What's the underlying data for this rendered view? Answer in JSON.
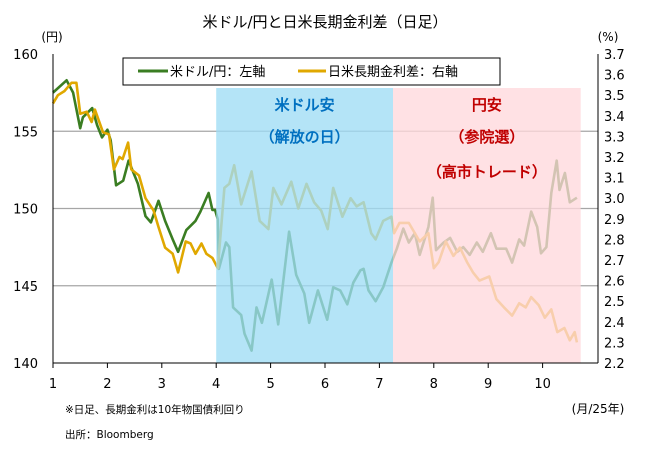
{
  "chart_data": {
    "type": "line",
    "title": "米ドル/円と日米長期金利差（日足）",
    "ylabel_left": "(円)",
    "ylabel_right": "(%)",
    "xlabel": "(月/25年)",
    "ylim_left": [
      140,
      160
    ],
    "ylim_right": [
      2.2,
      3.7
    ],
    "xlim": [
      1,
      10.9
    ],
    "grid": true,
    "legend_placement": "top",
    "left_ticks": [
      "160",
      "155",
      "150",
      "145",
      "140"
    ],
    "right_ticks": [
      "3.7",
      "3.6",
      "3.5",
      "3.4",
      "3.3",
      "3.2",
      "3.1",
      "3.0",
      "2.9",
      "2.8",
      "2.7",
      "2.6",
      "2.5",
      "2.4",
      "2.3",
      "2.2"
    ],
    "x_ticks": [
      "1",
      "2",
      "3",
      "4",
      "5",
      "6",
      "7",
      "8",
      "9",
      "10"
    ],
    "series": [
      {
        "name": "米ドル/円：左軸",
        "axis": "left",
        "color": "#3a7d22",
        "x": [
          1.0,
          1.25,
          1.37,
          1.5,
          1.55,
          1.72,
          1.81,
          1.9,
          2.0,
          2.06,
          2.16,
          2.29,
          2.39,
          2.56,
          2.7,
          2.8,
          2.94,
          3.06,
          3.2,
          3.3,
          3.45,
          3.62,
          3.71,
          3.86,
          3.93,
          3.98,
          4.03,
          4.05,
          4.18,
          4.24,
          4.31,
          4.46,
          4.52,
          4.65,
          4.74,
          4.84,
          5.02,
          5.14,
          5.34,
          5.47,
          5.62,
          5.71,
          5.87,
          6.04,
          6.15,
          6.28,
          6.41,
          6.52,
          6.65,
          6.71,
          6.8,
          6.93,
          7.07,
          7.22,
          7.32,
          7.44,
          7.54,
          7.65,
          7.74,
          7.9,
          7.98,
          8.04,
          8.18,
          8.3,
          8.43,
          8.54,
          8.66,
          8.79,
          8.9,
          9.05,
          9.15,
          9.33,
          9.44,
          9.57,
          9.66,
          9.79,
          9.9,
          9.97,
          10.07,
          10.16,
          10.26,
          10.31,
          10.41,
          10.5,
          10.63
        ],
        "values": [
          157.5,
          158.3,
          157.5,
          155.2,
          155.9,
          156.5,
          155.4,
          154.6,
          155.1,
          154.4,
          151.5,
          151.8,
          153.1,
          151.6,
          149.5,
          149.1,
          150.5,
          149.2,
          148.0,
          147.2,
          148.6,
          149.2,
          149.8,
          151.0,
          149.9,
          149.9,
          149.3,
          146.1,
          147.8,
          147.5,
          143.6,
          143.1,
          141.9,
          140.8,
          143.6,
          142.6,
          145.4,
          142.5,
          148.5,
          145.7,
          144.5,
          142.6,
          144.7,
          142.8,
          144.9,
          144.7,
          143.8,
          145.2,
          146.0,
          146.1,
          144.7,
          144.0,
          144.9,
          146.5,
          147.4,
          148.7,
          147.8,
          148.4,
          147.0,
          148.8,
          150.7,
          147.3,
          147.8,
          148.1,
          147.2,
          147.5,
          147.0,
          147.8,
          147.2,
          148.4,
          147.4,
          147.4,
          146.5,
          148.0,
          147.6,
          149.8,
          148.8,
          147.1,
          147.5,
          151.0,
          153.1,
          151.2,
          152.3,
          150.4,
          150.7
        ]
      },
      {
        "name": "日米長期金利差：右軸",
        "axis": "right",
        "color": "#e0a800",
        "x": [
          1.0,
          1.09,
          1.21,
          1.34,
          1.43,
          1.5,
          1.62,
          1.71,
          1.77,
          1.92,
          2.03,
          2.12,
          2.22,
          2.28,
          2.38,
          2.44,
          2.58,
          2.7,
          2.85,
          2.94,
          3.06,
          3.2,
          3.3,
          3.44,
          3.53,
          3.62,
          3.73,
          3.82,
          3.93,
          4.03,
          4.15,
          4.24,
          4.33,
          4.46,
          4.65,
          4.8,
          4.96,
          5.05,
          5.2,
          5.38,
          5.51,
          5.66,
          5.8,
          5.93,
          6.05,
          6.15,
          6.32,
          6.47,
          6.58,
          6.71,
          6.85,
          6.93,
          7.07,
          7.22,
          7.27,
          7.37,
          7.54,
          7.74,
          7.9,
          8.0,
          8.09,
          8.22,
          8.36,
          8.48,
          8.61,
          8.72,
          8.84,
          9.02,
          9.15,
          9.29,
          9.44,
          9.57,
          9.69,
          9.79,
          9.93,
          10.04,
          10.16,
          10.27,
          10.4,
          10.5,
          10.59,
          10.63
        ],
        "values": [
          3.46,
          3.5,
          3.52,
          3.56,
          3.56,
          3.41,
          3.42,
          3.37,
          3.43,
          3.32,
          3.31,
          3.14,
          3.2,
          3.19,
          3.27,
          3.14,
          3.11,
          3.0,
          2.94,
          2.86,
          2.76,
          2.73,
          2.64,
          2.79,
          2.78,
          2.73,
          2.78,
          2.73,
          2.71,
          2.66,
          3.05,
          3.07,
          3.16,
          2.97,
          3.13,
          2.89,
          2.85,
          3.05,
          2.97,
          3.08,
          2.95,
          3.07,
          2.98,
          2.94,
          2.85,
          3.05,
          2.91,
          3.0,
          2.96,
          2.98,
          2.83,
          2.8,
          2.89,
          2.91,
          2.83,
          2.88,
          2.88,
          2.79,
          2.83,
          2.66,
          2.69,
          2.79,
          2.72,
          2.76,
          2.69,
          2.64,
          2.6,
          2.62,
          2.51,
          2.47,
          2.43,
          2.49,
          2.47,
          2.52,
          2.48,
          2.42,
          2.46,
          2.35,
          2.37,
          2.31,
          2.35,
          2.3
        ]
      }
    ],
    "annotations": [
      {
        "label": "米ドル安",
        "sub": "（解放の日）",
        "range": [
          4.0,
          7.25
        ],
        "color": "#0070c0",
        "fill": "#9fdcf5"
      },
      {
        "label": "円安",
        "sub": "（参院選）",
        "sub2": "（高市トレード）",
        "range": [
          7.25,
          10.7
        ],
        "color": "#c00000",
        "fill": "#ffd9dc"
      }
    ]
  },
  "footnotes": {
    "note": "※日足、長期金利は10年物国債利回り",
    "source": "出所：Bloomberg"
  }
}
